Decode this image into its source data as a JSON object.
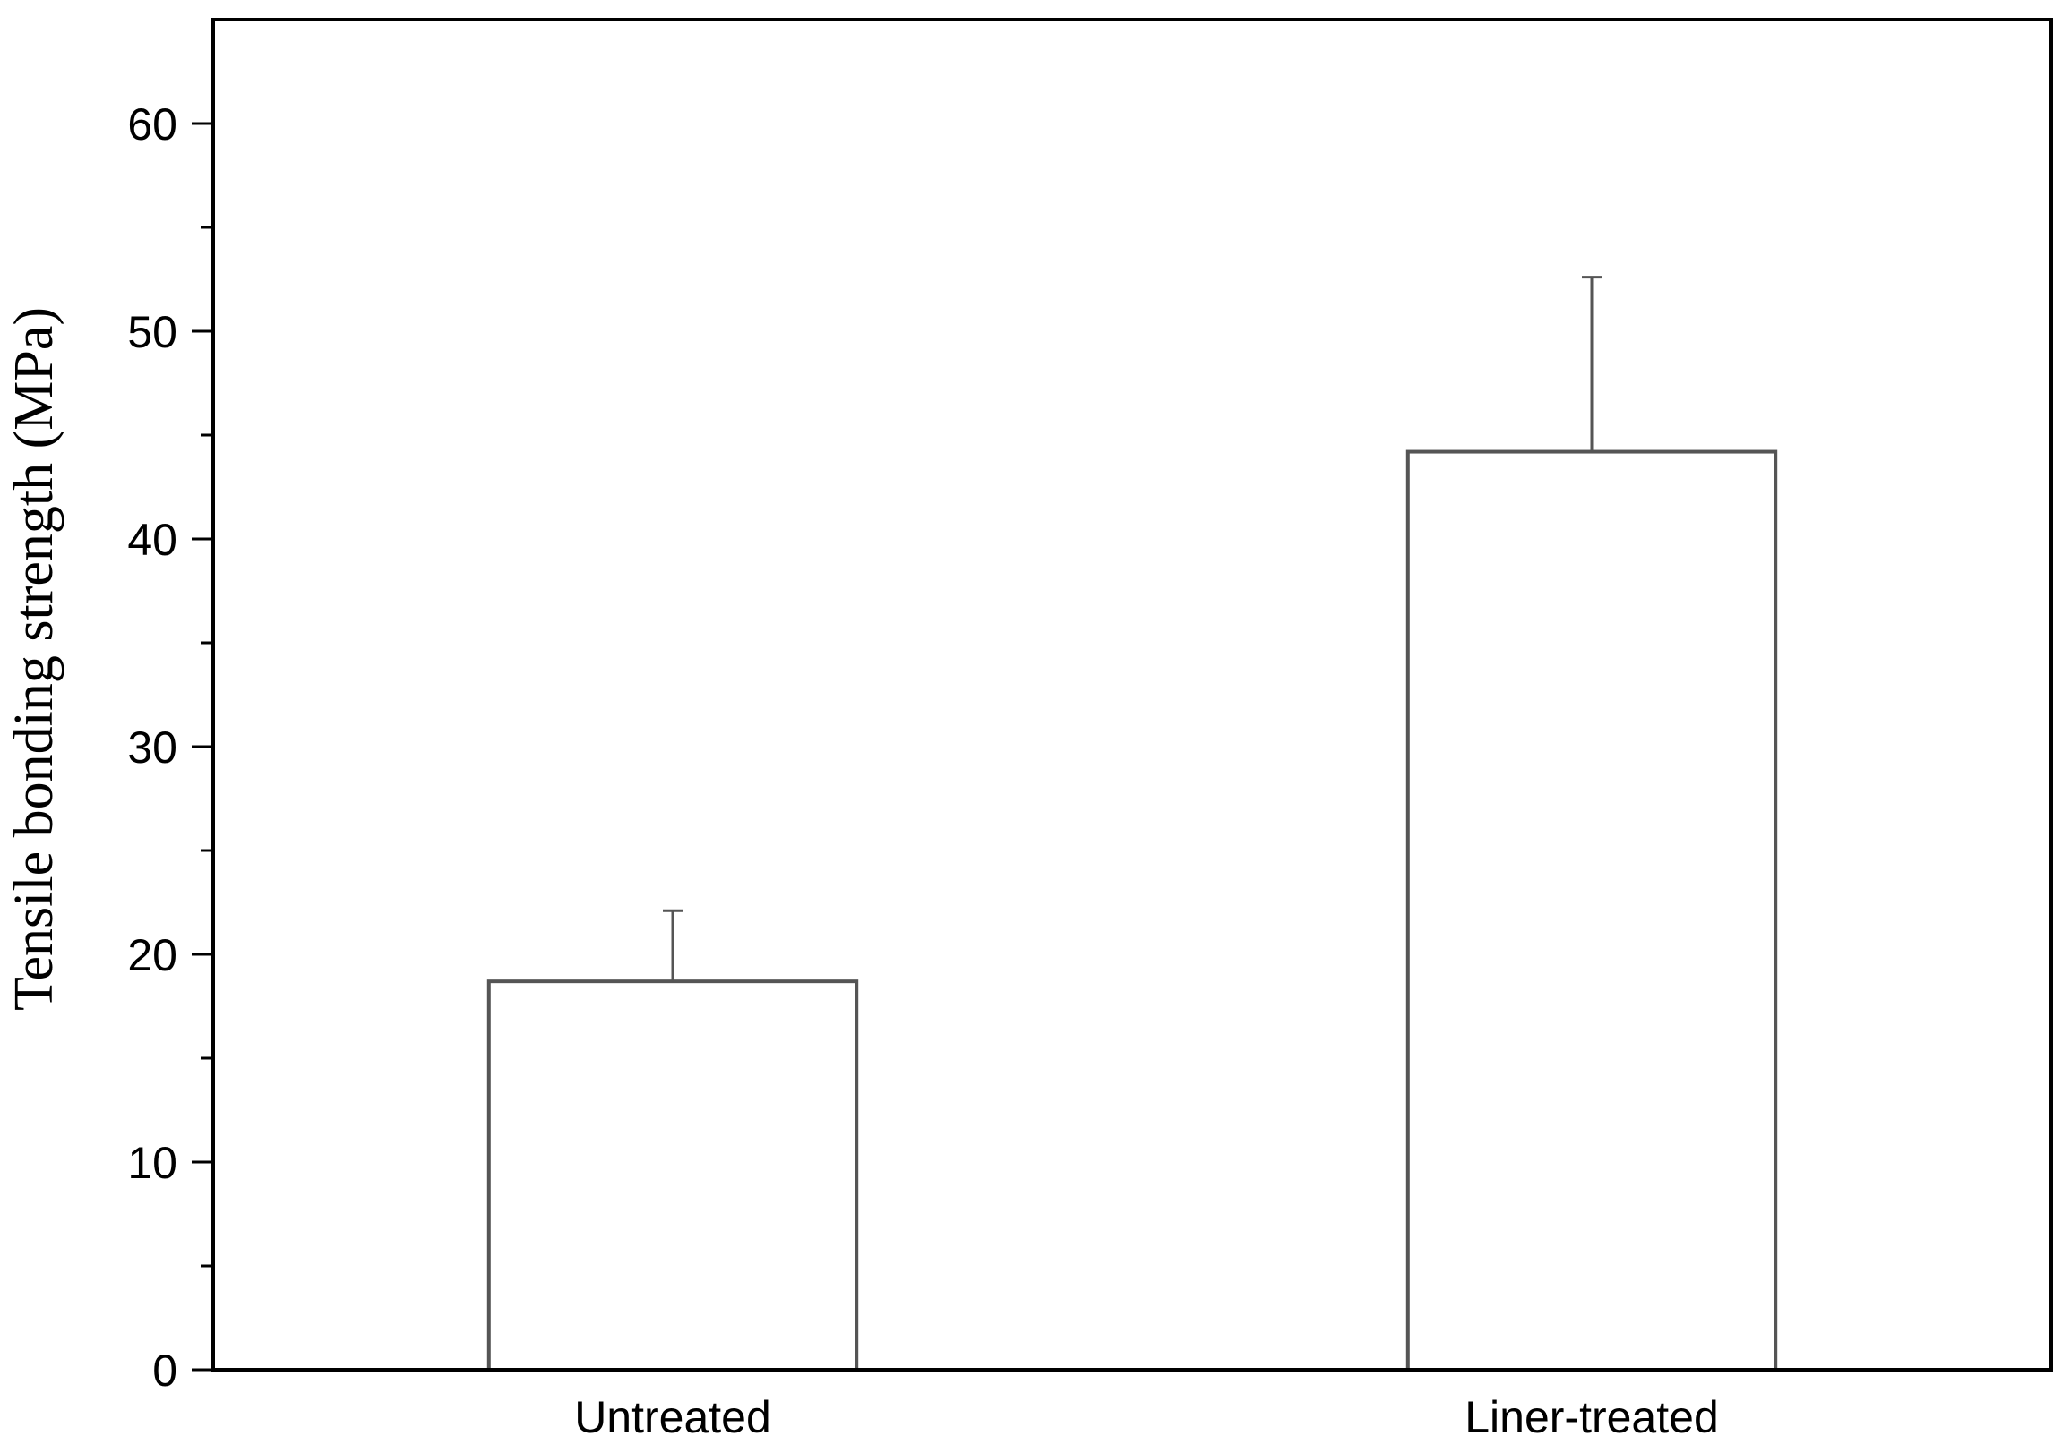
{
  "chart_data": {
    "type": "bar",
    "categories": [
      "Untreated",
      "Liner-treated"
    ],
    "values": [
      18.7,
      44.2
    ],
    "error_upper": [
      22.1,
      52.6
    ],
    "title": "",
    "xlabel": "",
    "ylabel": "Tensile bonding strength (MPa)",
    "ylim": [
      0,
      65
    ],
    "yticks": [
      0,
      10,
      20,
      30,
      40,
      50,
      60
    ],
    "ytick_labels": [
      "0",
      "10",
      "20",
      "30",
      "40",
      "50",
      "60"
    ],
    "minor_yticks": [
      5,
      15,
      25,
      35,
      45,
      55
    ],
    "grid": false,
    "legend": "none",
    "colors": {
      "bar_fill": "#ffffff",
      "bar_stroke": "#555555",
      "axis": "#000000"
    }
  }
}
